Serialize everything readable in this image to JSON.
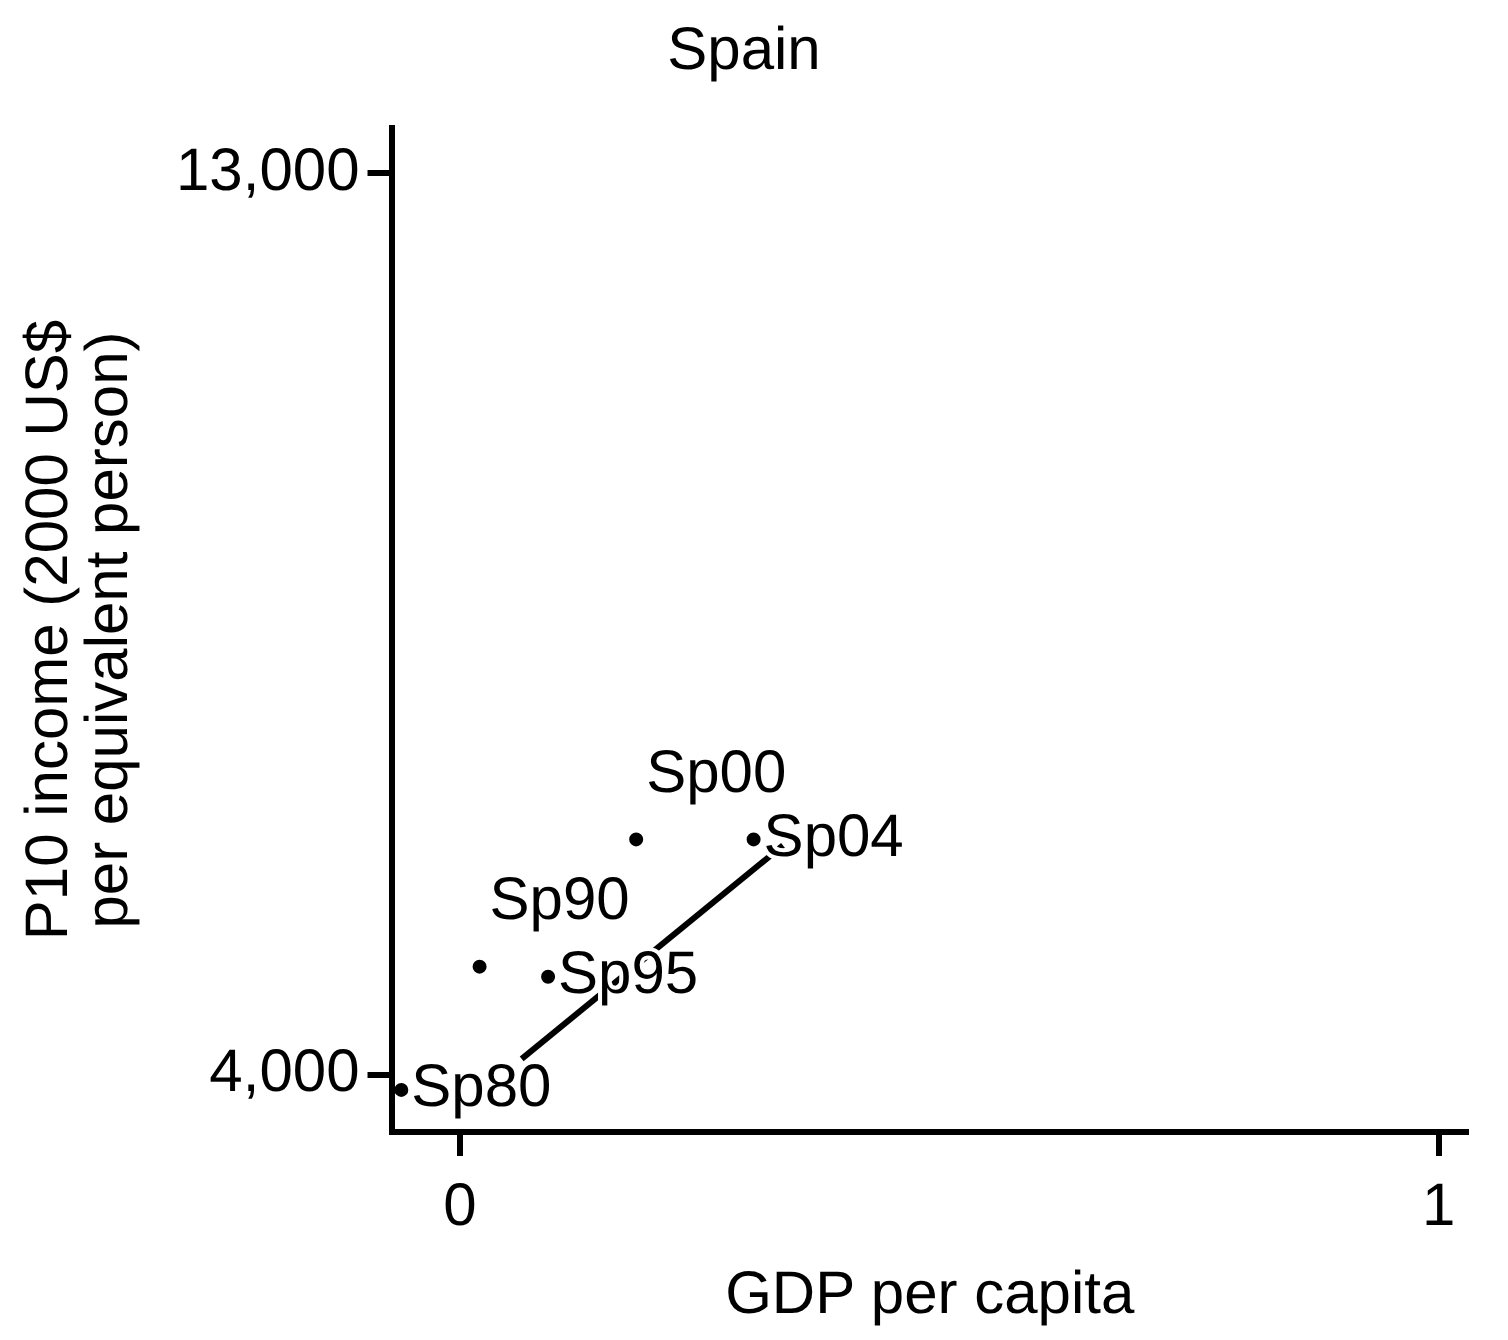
{
  "chart_data": {
    "type": "scatter",
    "title": "Spain",
    "xlabel": "GDP per capita",
    "ylabel": "P10 income (2000 US$\nper equivalent person)",
    "xlim": [
      -0.07,
      1.03
    ],
    "xticks": [
      0,
      1
    ],
    "ylim": [
      3430,
      13450
    ],
    "yticks": [
      {
        "value": 4000,
        "label": "4,000"
      },
      {
        "value": 13000,
        "label": "13,000"
      }
    ],
    "grid": false,
    "legend": false,
    "series": [
      {
        "color": "#000000",
        "marker": "circle",
        "x": [
          -0.06,
          0.02,
          0.09,
          0.18,
          0.3
        ],
        "values": [
          3850,
          5080,
          4980,
          6350,
          6350
        ],
        "value_labels": [
          "Sp80",
          "Sp90",
          "Sp95",
          "Sp00",
          "Sp04"
        ]
      },
      {
        "type": "line",
        "color": "#000000",
        "line_style": "solid",
        "x": [
          0.063,
          0.33
        ],
        "values": [
          4160,
          6290
        ]
      }
    ]
  }
}
